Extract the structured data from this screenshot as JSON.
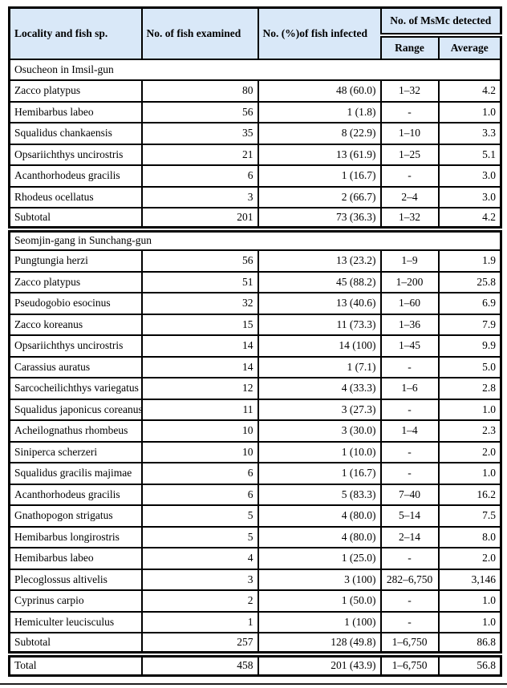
{
  "colors": {
    "header_bg": "#d9e8f8",
    "border": "#000000",
    "page_line": "#1f1f1f"
  },
  "table": {
    "header": {
      "locality": "Locality and fish sp.",
      "examined": "No. of fish examined",
      "infected": "No. (%)of fish infected",
      "msmc": "No. of MsMc detected",
      "range": "Range",
      "average": "Average"
    },
    "sections": [
      {
        "title": "Osucheon in Imsil-gun",
        "rows": [
          {
            "species": "Zacco platypus",
            "examined": "80",
            "infected": "48 (60.0)",
            "range": "1–32",
            "average": "4.2"
          },
          {
            "species": "Hemibarbus labeo",
            "examined": "56",
            "infected": "1 (1.8)",
            "range": "-",
            "average": "1.0"
          },
          {
            "species": "Squalidus chankaensis",
            "examined": "35",
            "infected": "8 (22.9)",
            "range": "1–10",
            "average": "3.3"
          },
          {
            "species": "Opsariichthys uncirostris",
            "examined": "21",
            "infected": "13 (61.9)",
            "range": "1–25",
            "average": "5.1"
          },
          {
            "species": "Acanthorhodeus gracilis",
            "examined": "6",
            "infected": "1 (16.7)",
            "range": "-",
            "average": "3.0"
          },
          {
            "species": "Rhodeus ocellatus",
            "examined": "3",
            "infected": "2 (66.7)",
            "range": "2–4",
            "average": "3.0"
          },
          {
            "species": "Subtotal",
            "examined": "201",
            "infected": "73 (36.3)",
            "range": "1–32",
            "average": "4.2"
          }
        ]
      },
      {
        "title": "Seomjin-gang in Sunchang-gun",
        "rows": [
          {
            "species": "Pungtungia herzi",
            "examined": "56",
            "infected": "13 (23.2)",
            "range": "1–9",
            "average": "1.9"
          },
          {
            "species": "Zacco platypus",
            "examined": "51",
            "infected": "45 (88.2)",
            "range": "1–200",
            "average": "25.8"
          },
          {
            "species": "Pseudogobio esocinus",
            "examined": "32",
            "infected": "13 (40.6)",
            "range": "1–60",
            "average": "6.9"
          },
          {
            "species": "Zacco koreanus",
            "examined": "15",
            "infected": "11 (73.3)",
            "range": "1–36",
            "average": "7.9"
          },
          {
            "species": "Opsariichthys uncirostris",
            "examined": "14",
            "infected": "14 (100)",
            "range": "1–45",
            "average": "9.9"
          },
          {
            "species": "Carassius auratus",
            "examined": "14",
            "infected": "1 (7.1)",
            "range": "-",
            "average": "5.0"
          },
          {
            "species": "Sarcocheilichthys variegatus",
            "examined": "12",
            "infected": "4 (33.3)",
            "range": "1–6",
            "average": "2.8"
          },
          {
            "species": "Squalidus japonicus coreanus",
            "examined": "11",
            "infected": "3 (27.3)",
            "range": "-",
            "average": "1.0"
          },
          {
            "species": "Acheilognathus rhombeus",
            "examined": "10",
            "infected": "3 (30.0)",
            "range": "1–4",
            "average": "2.3"
          },
          {
            "species": "Siniperca scherzeri",
            "examined": "10",
            "infected": "1 (10.0)",
            "range": "-",
            "average": "2.0"
          },
          {
            "species": "Squalidus gracilis majimae",
            "examined": "6",
            "infected": "1 (16.7)",
            "range": "-",
            "average": "1.0"
          },
          {
            "species": "Acanthorhodeus gracilis",
            "examined": "6",
            "infected": "5 (83.3)",
            "range": "7–40",
            "average": "16.2"
          },
          {
            "species": "Gnathopogon strigatus",
            "examined": "5",
            "infected": "4 (80.0)",
            "range": "5–14",
            "average": "7.5"
          },
          {
            "species": "Hemibarbus longirostris",
            "examined": "5",
            "infected": "4 (80.0)",
            "range": "2–14",
            "average": "8.0"
          },
          {
            "species": "Hemibarbus labeo",
            "examined": "4",
            "infected": "1 (25.0)",
            "range": "-",
            "average": "2.0"
          },
          {
            "species": "Plecoglossus altivelis",
            "examined": "3",
            "infected": "3 (100)",
            "range": "282–6,750",
            "average": "3,146"
          },
          {
            "species": "Cyprinus carpio",
            "examined": "2",
            "infected": "1 (50.0)",
            "range": "-",
            "average": "1.0"
          },
          {
            "species": "Hemiculter leucisculus",
            "examined": "1",
            "infected": "1 (100)",
            "range": "-",
            "average": "1.0"
          },
          {
            "species": "Subtotal",
            "examined": "257",
            "infected": "128 (49.8)",
            "range": "1–6,750",
            "average": "86.8"
          }
        ]
      }
    ],
    "total": {
      "species": "Total",
      "examined": "458",
      "infected": "201 (43.9)",
      "range": "1–6,750",
      "average": "56.8"
    }
  }
}
